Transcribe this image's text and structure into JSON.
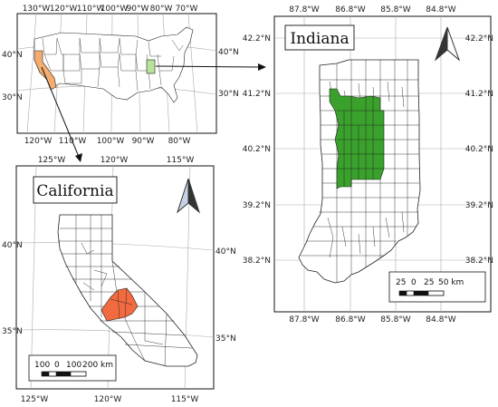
{
  "colors": {
    "california_highlight": "#f4ad6f",
    "indiana_overview": "#b8e39a",
    "indiana_highlight": "#3aa12c",
    "california_counties": "#f26a3f",
    "arrow_dark": "#333333",
    "arrow_light": "#c7d3e5"
  },
  "us_map": {
    "lon_ticks_top": [
      "130°W",
      "120°W",
      "110°W",
      "100°W",
      "90°W",
      "80°W",
      "70°W"
    ],
    "lon_ticks_bottom": [
      "120°W",
      "110°W",
      "100°W",
      "90°W",
      "80°W"
    ],
    "lat_ticks_left": [
      "40°N",
      "30°N"
    ],
    "lat_ticks_right": [
      "40°N",
      "30°N"
    ]
  },
  "indiana_map": {
    "title": "Indiana",
    "lon_ticks": [
      "87.8°W",
      "86.8°W",
      "85.8°W",
      "84.8°W"
    ],
    "lat_ticks": [
      "42.2°N",
      "41.2°N",
      "40.2°N",
      "39.2°N",
      "38.2°N"
    ],
    "north_arrow_icon": "north-arrow-icon",
    "scale_labels": [
      "25",
      "0",
      "25",
      "50 km"
    ]
  },
  "california_map": {
    "title": "California",
    "lon_ticks": [
      "125°W",
      "120°W",
      "115°W"
    ],
    "lat_ticks": [
      "40°N",
      "35°N"
    ],
    "north_arrow_icon": "north-arrow-icon",
    "scale_labels": [
      "100",
      "0",
      "100",
      "200 km"
    ]
  }
}
